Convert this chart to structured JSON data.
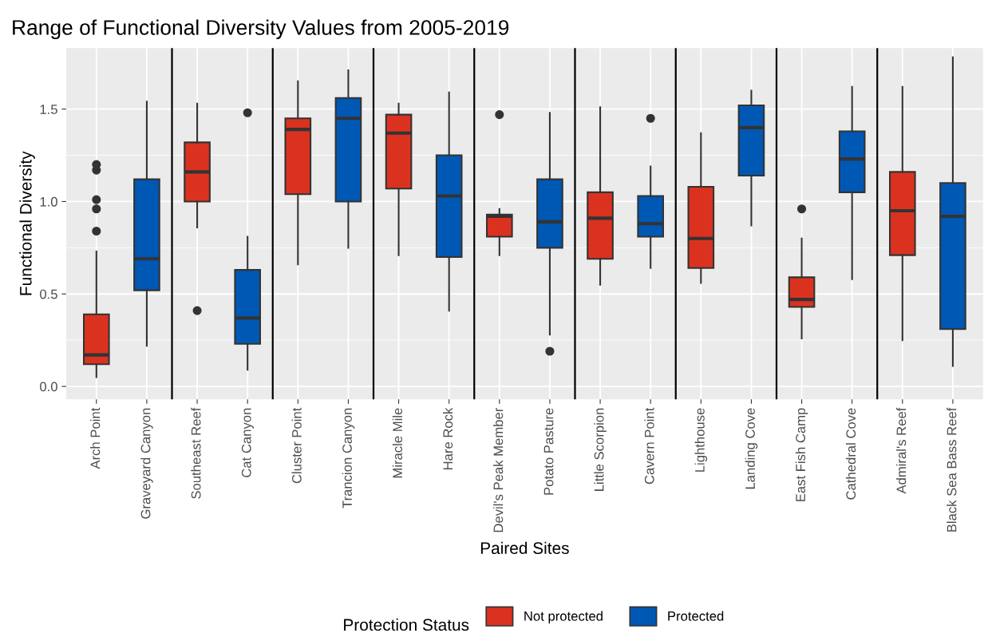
{
  "chart_data": {
    "type": "box",
    "title": "Range of Functional Diversity Values from 2005-2019",
    "xlabel": "Paired Sites",
    "ylabel": "Functional Diversity",
    "legend_title": "Protection Status",
    "categories": [
      "Arch Point",
      "Graveyard Canyon",
      "Southeast Reef",
      "Cat Canyon",
      "Cluster Point",
      "Trancion Canyon",
      "Miracle Mile",
      "Hare Rock",
      "Devil's Peak Member",
      "Potato Pasture",
      "Little Scorpion",
      "Cavern Point",
      "Lighthouse",
      "Landing Cove",
      "East Fish Camp",
      "Cathedral Cove",
      "Admiral's Reef",
      "Black Sea Bass Reef"
    ],
    "series": [
      {
        "name": "Not protected",
        "color": "#db3220",
        "boxes": [
          {
            "low": 0.05,
            "q1": 0.12,
            "median": 0.17,
            "q3": 0.39,
            "high": 0.73,
            "outliers": [
              1.2,
              1.17,
              1.01,
              0.96,
              0.84
            ]
          },
          null,
          {
            "low": 0.86,
            "q1": 1.0,
            "median": 1.16,
            "q3": 1.32,
            "high": 1.53,
            "outliers": [
              0.41
            ]
          },
          null,
          {
            "low": 0.66,
            "q1": 1.04,
            "median": 1.39,
            "q3": 1.45,
            "high": 1.65
          },
          null,
          {
            "low": 0.71,
            "q1": 1.07,
            "median": 1.37,
            "q3": 1.47,
            "high": 1.53
          },
          null,
          {
            "low": 0.71,
            "q1": 0.81,
            "median": 0.92,
            "q3": 0.93,
            "high": 0.96,
            "outliers": [
              1.47
            ]
          },
          null,
          {
            "low": 0.55,
            "q1": 0.69,
            "median": 0.91,
            "q3": 1.05,
            "high": 1.51
          },
          null,
          {
            "low": 0.56,
            "q1": 0.64,
            "median": 0.8,
            "q3": 1.08,
            "high": 1.37
          },
          null,
          {
            "low": 0.26,
            "q1": 0.43,
            "median": 0.47,
            "q3": 0.59,
            "high": 0.8,
            "outliers": [
              0.96
            ]
          },
          null,
          {
            "low": 0.25,
            "q1": 0.71,
            "median": 0.95,
            "q3": 1.16,
            "high": 1.62
          },
          null
        ]
      },
      {
        "name": "Protected",
        "color": "#0058b5",
        "boxes": [
          null,
          {
            "low": 0.22,
            "q1": 0.52,
            "median": 0.69,
            "q3": 1.12,
            "high": 1.54
          },
          null,
          {
            "low": 0.09,
            "q1": 0.23,
            "median": 0.37,
            "q3": 0.63,
            "high": 0.81,
            "outliers": [
              1.48
            ]
          },
          null,
          {
            "low": 0.75,
            "q1": 1.0,
            "median": 1.45,
            "q3": 1.56,
            "high": 1.71
          },
          null,
          {
            "low": 0.41,
            "q1": 0.7,
            "median": 1.03,
            "q3": 1.25,
            "high": 1.59
          },
          null,
          {
            "low": 0.28,
            "q1": 0.75,
            "median": 0.89,
            "q3": 1.12,
            "high": 1.48,
            "outliers": [
              0.19
            ]
          },
          null,
          {
            "low": 0.64,
            "q1": 0.81,
            "median": 0.88,
            "q3": 1.03,
            "high": 1.19,
            "outliers": [
              1.45
            ]
          },
          null,
          {
            "low": 0.87,
            "q1": 1.14,
            "median": 1.4,
            "q3": 1.52,
            "high": 1.6
          },
          null,
          {
            "low": 0.58,
            "q1": 1.05,
            "median": 1.23,
            "q3": 1.38,
            "high": 1.62
          },
          null,
          {
            "low": 0.11,
            "q1": 0.31,
            "median": 0.92,
            "q3": 1.1,
            "high": 1.78
          }
        ]
      }
    ],
    "ylim": [
      -0.07,
      1.83
    ],
    "yticks": [
      {
        "value": 0,
        "label": "0.0"
      },
      0.5,
      {
        "value": 1,
        "label": "1.0"
      },
      1.5
    ],
    "grid": true,
    "legend": "bottom"
  }
}
